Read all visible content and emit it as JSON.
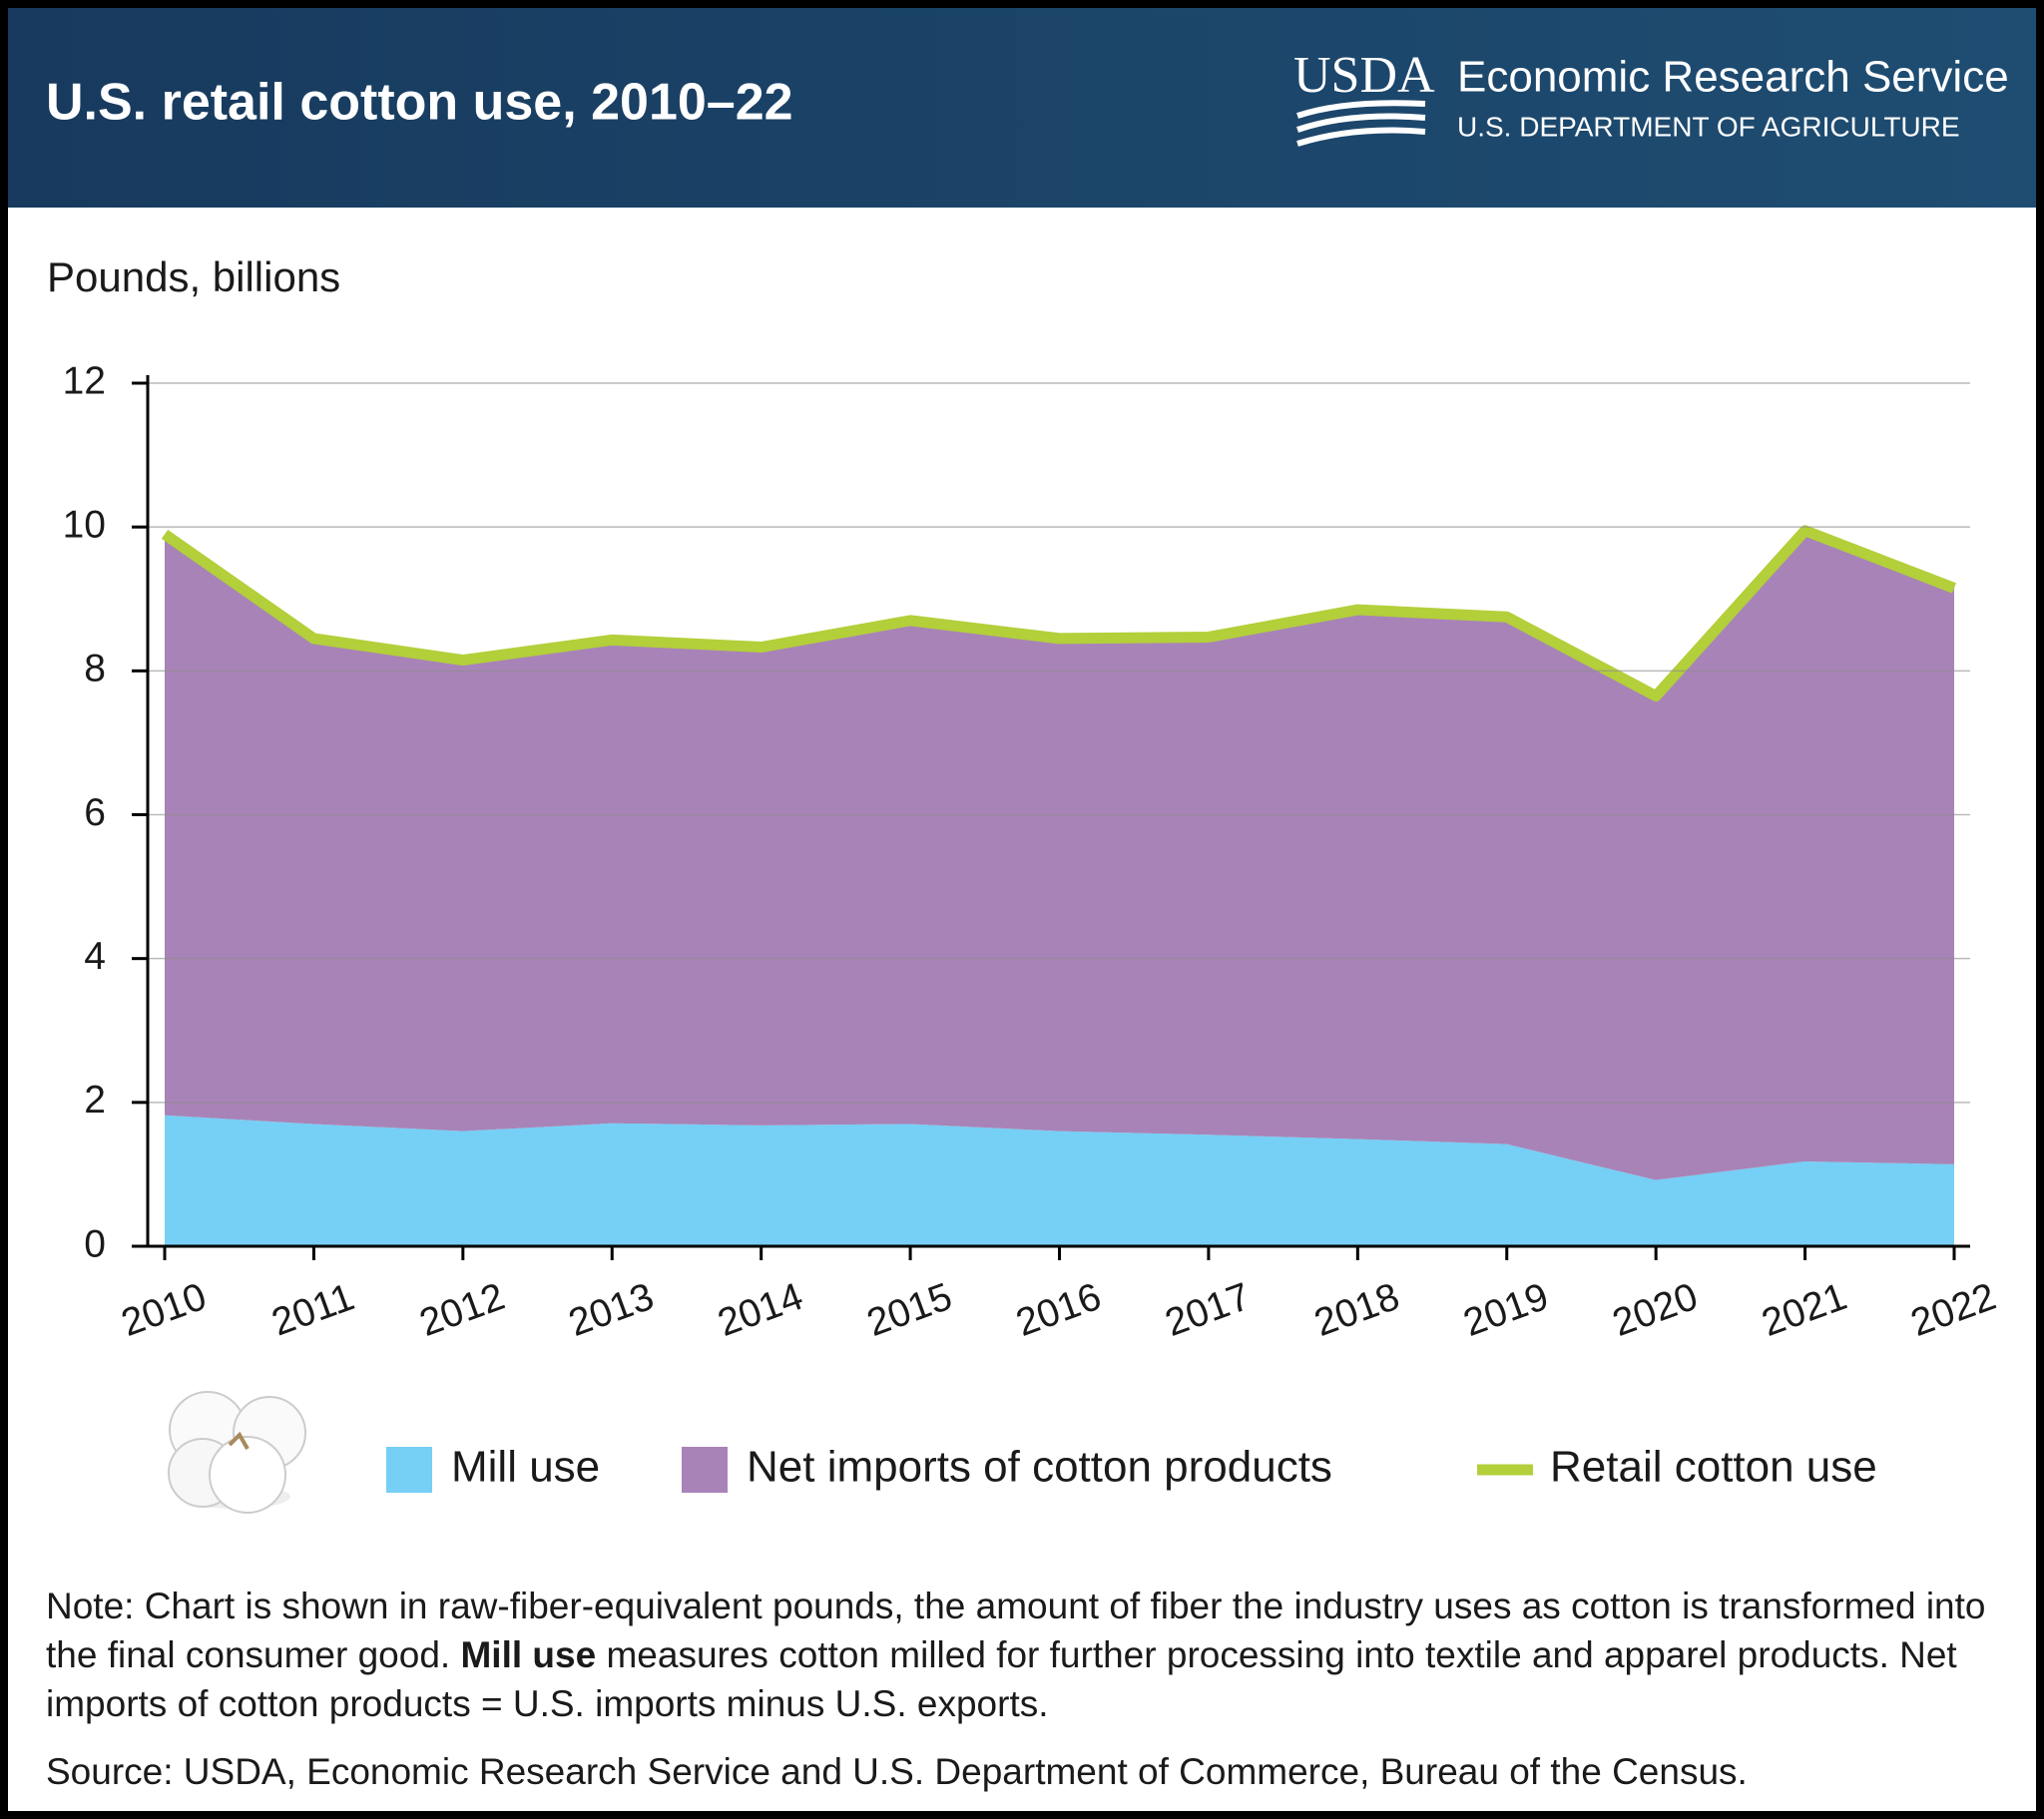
{
  "header": {
    "title": "U.S. retail cotton use, 2010–22",
    "logo": "USDA",
    "org": "Economic Research Service",
    "dept": "U.S. DEPARTMENT OF AGRICULTURE"
  },
  "chart_data": {
    "type": "area",
    "y_label": "Pounds, billions",
    "categories": [
      "2010",
      "2011",
      "2012",
      "2013",
      "2014",
      "2015",
      "2016",
      "2017",
      "2018",
      "2019",
      "2020",
      "2021",
      "2022"
    ],
    "series": [
      {
        "name": "Mill use",
        "type": "area",
        "color": "#76cff4",
        "values": [
          1.82,
          1.7,
          1.6,
          1.71,
          1.68,
          1.7,
          1.6,
          1.55,
          1.49,
          1.42,
          0.92,
          1.18,
          1.14
        ]
      },
      {
        "name": "Net imports of cotton products",
        "type": "area",
        "color": "#a883b8",
        "values": [
          8.08,
          6.75,
          6.55,
          6.72,
          6.65,
          7.0,
          6.85,
          6.92,
          7.36,
          7.33,
          6.73,
          8.77,
          8.01
        ]
      },
      {
        "name": "Retail cotton use",
        "type": "line",
        "color": "#b3cf3a",
        "values": [
          9.9,
          8.45,
          8.15,
          8.43,
          8.33,
          8.7,
          8.45,
          8.47,
          8.85,
          8.75,
          7.65,
          9.95,
          9.15
        ]
      }
    ],
    "ylim": [
      0,
      12
    ],
    "yticks": [
      0,
      2,
      4,
      6,
      8,
      10,
      12
    ],
    "grid": true
  },
  "note": {
    "start": "Note: Chart is shown in raw-fiber-equivalent pounds, the amount of fiber the industry uses as cotton is transformed into the final consumer good.",
    "bold": "Mill use",
    "end": "measures cotton milled for further processing into textile and apparel products. Net imports of cotton products = U.S. imports minus U.S. exports."
  },
  "source": "Source: USDA, Economic Research Service and U.S. Department of Commerce, Bureau of the Census."
}
